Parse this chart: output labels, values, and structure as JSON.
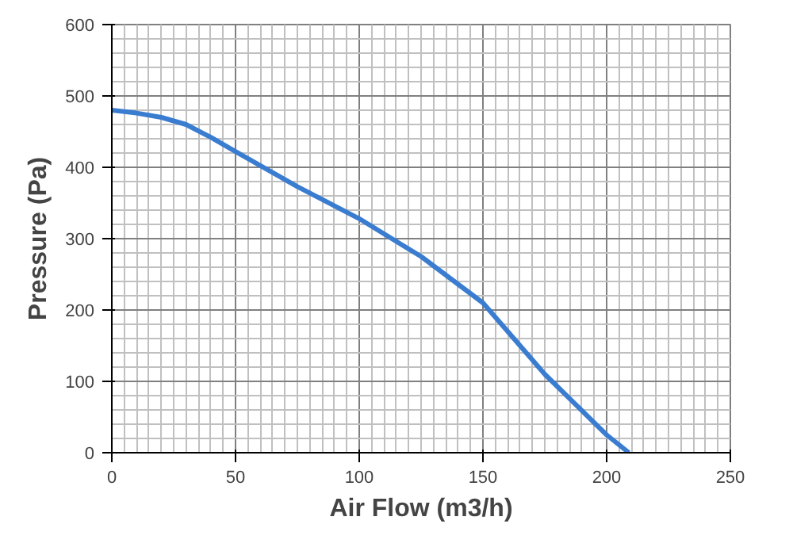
{
  "chart_data": {
    "type": "line",
    "xlabel": "Air Flow (m3/h)",
    "ylabel": "Pressure (Pa)",
    "x": [
      0,
      10,
      20,
      30,
      40,
      50,
      75,
      100,
      125,
      150,
      175,
      200,
      209
    ],
    "series": [
      {
        "color": "#3a7dd0",
        "values": [
          480,
          476,
          470,
          460,
          442,
          422,
          373,
          328,
          275,
          210,
          110,
          25,
          0
        ]
      }
    ],
    "xlim": [
      0,
      250
    ],
    "ylim": [
      0,
      600
    ],
    "xticks": [
      0,
      50,
      100,
      150,
      200,
      250
    ],
    "yticks": [
      0,
      100,
      200,
      300,
      400,
      500,
      600
    ],
    "grid": true,
    "marker": "none",
    "line_style": "solid"
  }
}
